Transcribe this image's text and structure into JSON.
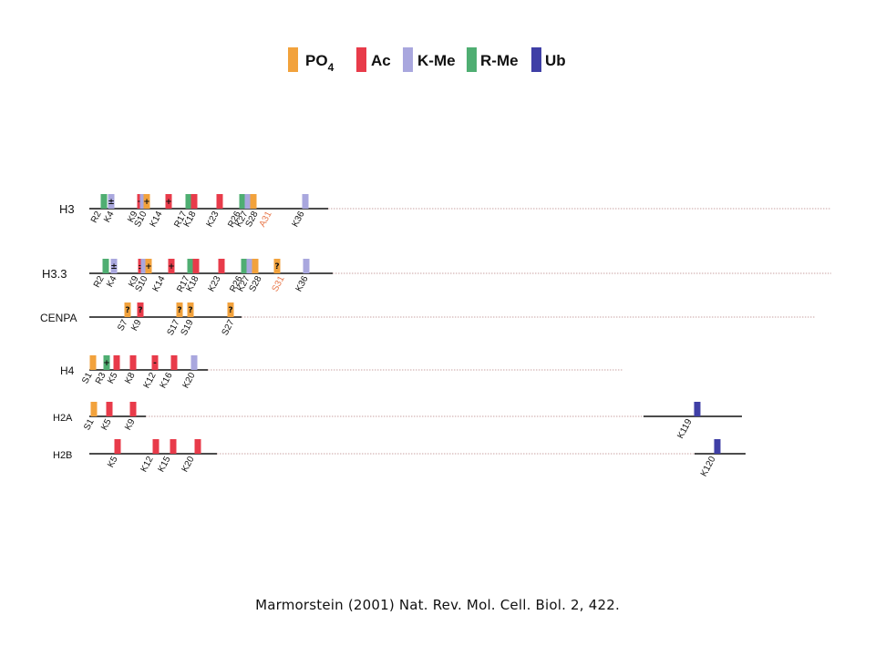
{
  "legend": [
    {
      "key": "PO4",
      "base": "PO",
      "sub": "4",
      "color": "#f2a23c"
    },
    {
      "key": "Ac",
      "base": "Ac",
      "sub": "",
      "color": "#e83b4a"
    },
    {
      "key": "K-Me",
      "base": "K-Me",
      "sub": "",
      "color": "#a9a7de"
    },
    {
      "key": "R-Me",
      "base": "R-Me",
      "sub": "",
      "color": "#4fae72"
    },
    {
      "key": "Ub",
      "base": "Ub",
      "sub": "",
      "color": "#3f3fa6"
    }
  ],
  "histones": [
    {
      "name": "H3",
      "marks": [
        {
          "type": "R-Me"
        },
        {
          "type": "K-Me",
          "sym": "±"
        },
        {
          "type": "Ac",
          "sym": "+"
        },
        {
          "type": "K-Me"
        },
        {
          "type": "PO4",
          "sym": "+"
        },
        {
          "type": "Ac",
          "sym": "+"
        },
        {
          "type": "R-Me"
        },
        {
          "type": "Ac"
        },
        {
          "type": "Ac"
        },
        {
          "type": "R-Me"
        },
        {
          "type": "K-Me"
        },
        {
          "type": "PO4"
        },
        {
          "type": "K-Me"
        }
      ],
      "sites": [
        "R2",
        "K4",
        "K9",
        "S10",
        "K14",
        "R17",
        "K18",
        "K23",
        "R26",
        "K27",
        "S28",
        "A31",
        "K36"
      ],
      "highlight": [
        "A31"
      ]
    },
    {
      "name": "H3.3",
      "marks": [
        {
          "type": "R-Me"
        },
        {
          "type": "K-Me",
          "sym": "±"
        },
        {
          "type": "Ac",
          "sym": "±"
        },
        {
          "type": "K-Me"
        },
        {
          "type": "PO4",
          "sym": "+"
        },
        {
          "type": "Ac",
          "sym": "+"
        },
        {
          "type": "R-Me"
        },
        {
          "type": "Ac"
        },
        {
          "type": "Ac"
        },
        {
          "type": "R-Me"
        },
        {
          "type": "K-Me"
        },
        {
          "type": "PO4"
        },
        {
          "type": "PO4",
          "sym": "?"
        },
        {
          "type": "K-Me"
        }
      ],
      "sites": [
        "R2",
        "K4",
        "K9",
        "S10",
        "K14",
        "R17",
        "K18",
        "K23",
        "R26",
        "K27",
        "S28",
        "S31",
        "K36"
      ],
      "highlight": [
        "S31"
      ]
    },
    {
      "name": "CENPA",
      "marks": [
        {
          "type": "PO4",
          "sym": "?"
        },
        {
          "type": "Ac",
          "sym": "?"
        },
        {
          "type": "PO4",
          "sym": "?"
        },
        {
          "type": "PO4",
          "sym": "?"
        },
        {
          "type": "PO4",
          "sym": "?"
        }
      ],
      "sites": [
        "S7",
        "K9",
        "S17",
        "S19",
        "S27"
      ],
      "highlight": []
    },
    {
      "name": "H4",
      "marks": [
        {
          "type": "PO4"
        },
        {
          "type": "R-Me",
          "sym": "+"
        },
        {
          "type": "Ac"
        },
        {
          "type": "Ac"
        },
        {
          "type": "Ac",
          "sym": "-"
        },
        {
          "type": "Ac"
        },
        {
          "type": "K-Me"
        }
      ],
      "sites": [
        "S1",
        "R3",
        "K5",
        "K8",
        "K12",
        "K16",
        "K20"
      ],
      "highlight": []
    },
    {
      "name": "H2A",
      "marks": [
        {
          "type": "PO4"
        },
        {
          "type": "Ac"
        },
        {
          "type": "Ac"
        },
        {
          "type": "Ub"
        }
      ],
      "sites": [
        "S1",
        "K5",
        "K9",
        "K119"
      ],
      "highlight": []
    },
    {
      "name": "H2B",
      "marks": [
        {
          "type": "Ac"
        },
        {
          "type": "Ac"
        },
        {
          "type": "Ac"
        },
        {
          "type": "Ac"
        },
        {
          "type": "Ub"
        }
      ],
      "sites": [
        "K5",
        "K12",
        "K15",
        "K20",
        "K120"
      ],
      "highlight": []
    }
  ],
  "citation": "Marmorstein (2001) Nat. Rev. Mol. Cell. Biol. 2, 422.",
  "colors": {
    "highlight": "#e8774a",
    "line": "#111111",
    "dotted": "#c9a3a3"
  }
}
